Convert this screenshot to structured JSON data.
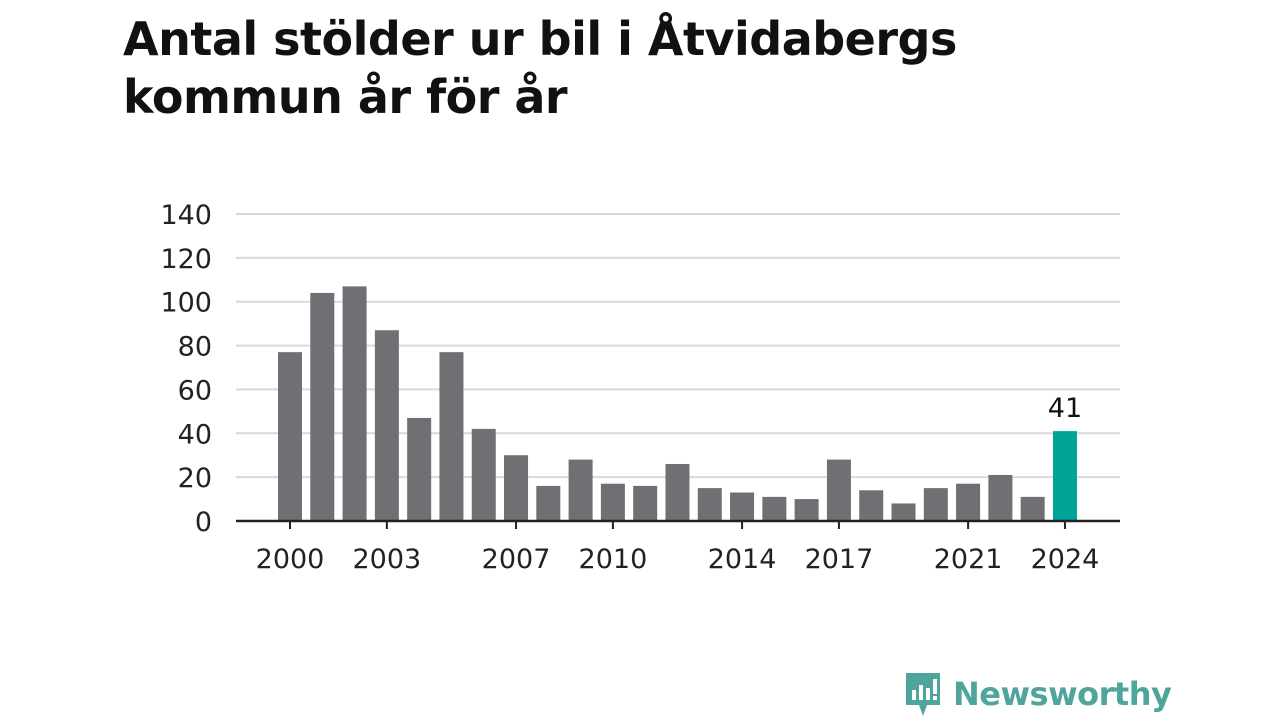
{
  "title": "Antal stölder ur bil i Åtvidabergs kommun år för år",
  "brand": {
    "name": "Newsworthy",
    "icon": "newsworthy-logo-icon"
  },
  "colors": {
    "bar": "#706f74",
    "highlight": "#00a398",
    "grid": "#d9d9d9",
    "axis": "#222222",
    "brand": "#4fa59c"
  },
  "chart_data": {
    "type": "bar",
    "title": "Antal stölder ur bil i Åtvidabergs kommun år för år",
    "xlabel": "",
    "ylabel": "",
    "categories": [
      "2000",
      "2001",
      "2002",
      "2003",
      "2004",
      "2005",
      "2006",
      "2007",
      "2008",
      "2009",
      "2010",
      "2011",
      "2012",
      "2013",
      "2014",
      "2015",
      "2016",
      "2017",
      "2018",
      "2019",
      "2020",
      "2021",
      "2022",
      "2023",
      "2024"
    ],
    "values": [
      77,
      104,
      107,
      87,
      47,
      77,
      42,
      30,
      16,
      28,
      17,
      16,
      26,
      15,
      13,
      11,
      10,
      28,
      14,
      8,
      15,
      17,
      21,
      11,
      41
    ],
    "x_tick_labels": [
      "2000",
      "2003",
      "2007",
      "2010",
      "2014",
      "2017",
      "2021",
      "2024"
    ],
    "y_ticks": [
      0,
      20,
      40,
      60,
      80,
      100,
      120,
      140
    ],
    "ylim": [
      0,
      140
    ],
    "grid": true,
    "highlight": {
      "category": "2024",
      "label": "41"
    }
  }
}
